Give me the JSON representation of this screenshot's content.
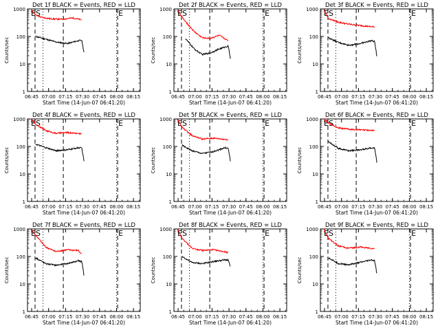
{
  "figure": {
    "colors": {
      "events": "#000000",
      "lld": "#ff0000"
    },
    "x_tick_labels": [
      "06:45",
      "07:00",
      "07:15",
      "07:30",
      "07:45",
      "08:00",
      "08:15"
    ],
    "y_tick_labels": [
      "1",
      "10",
      "100",
      "1000"
    ]
  },
  "chart_data": [
    {
      "type": "line",
      "title": "Det 1f BLACK = Events, RED = LLD",
      "xlabel": "Start Time (14-Jun-07 06:41:20)",
      "ylabel": "Counts/sec",
      "xlim": [
        "06:41:20",
        "08:21:00"
      ],
      "ylim": [
        1,
        1000
      ],
      "yscale": "log",
      "markers": {
        "dashed": [
          "06:48",
          "07:13",
          "08:01"
        ],
        "dotted": [
          "06:55",
          "08:00"
        ],
        "labels": [
          "E",
          "S",
          "E"
        ]
      },
      "series": [
        {
          "name": "Events",
          "values": [
            [
              7.2,
              100
            ],
            [
              16,
              80
            ],
            [
              25,
              63
            ],
            [
              35,
              55
            ],
            [
              45,
              70
            ],
            [
              48,
              72
            ],
            [
              50,
              25
            ]
          ]
        },
        {
          "name": "LLD",
          "values": [
            [
              3,
              1000
            ],
            [
              7.2,
              600
            ],
            [
              12,
              500
            ],
            [
              20,
              440
            ],
            [
              30,
              420
            ],
            [
              40,
              470
            ],
            [
              48,
              400
            ]
          ]
        }
      ]
    },
    {
      "type": "line",
      "title": "Det 2f BLACK = Events, RED = LLD",
      "xlabel": "Start Time (14-Jun-07 06:41:20)",
      "ylabel": "Counts/sec",
      "xlim": [
        "06:41:20",
        "08:21:00"
      ],
      "ylim": [
        1,
        1000
      ],
      "yscale": "log",
      "markers": {
        "dashed": [
          "06:48",
          "07:13",
          "08:01"
        ],
        "dotted": [
          "06:55",
          "08:00"
        ],
        "labels": [
          "E",
          "S",
          "E"
        ]
      },
      "series": [
        {
          "name": "Events",
          "values": [
            [
              10,
              85
            ],
            [
              18,
              35
            ],
            [
              25,
              22
            ],
            [
              32,
              25
            ],
            [
              40,
              35
            ],
            [
              48,
              45
            ],
            [
              50,
              15
            ]
          ]
        },
        {
          "name": "LLD",
          "values": [
            [
              3,
              900
            ],
            [
              10,
              350
            ],
            [
              18,
              150
            ],
            [
              25,
              90
            ],
            [
              32,
              85
            ],
            [
              40,
              110
            ],
            [
              48,
              70
            ]
          ]
        }
      ]
    },
    {
      "type": "line",
      "title": "Det 3f BLACK = Events, RED = LLD",
      "xlabel": "Start Time (14-Jun-07 06:41:20)",
      "ylabel": "Counts/sec",
      "xlim": [
        "06:41:20",
        "08:21:00"
      ],
      "ylim": [
        1,
        1000
      ],
      "yscale": "log",
      "markers": {
        "dashed": [
          "06:48",
          "07:13",
          "08:01"
        ],
        "dotted": [
          "06:55",
          "08:00"
        ],
        "labels": [
          "E",
          "S",
          "E"
        ]
      },
      "series": [
        {
          "name": "Events",
          "values": [
            [
              7.2,
              90
            ],
            [
              16,
              60
            ],
            [
              25,
              48
            ],
            [
              35,
              55
            ],
            [
              45,
              70
            ],
            [
              48,
              65
            ],
            [
              50,
              18
            ]
          ]
        },
        {
          "name": "LLD",
          "values": [
            [
              3,
              950
            ],
            [
              7.2,
              450
            ],
            [
              16,
              330
            ],
            [
              25,
              280
            ],
            [
              35,
              250
            ],
            [
              48,
              220
            ]
          ]
        }
      ]
    },
    {
      "type": "line",
      "title": "Det 4f BLACK = Events, RED = LLD",
      "xlabel": "Start Time (14-Jun-07 06:41:20)",
      "ylabel": "Counts/sec",
      "xlim": [
        "06:41:20",
        "08:21:00"
      ],
      "ylim": [
        1,
        1000
      ],
      "yscale": "log",
      "markers": {
        "dashed": [
          "06:48",
          "07:13",
          "08:01"
        ],
        "dotted": [
          "06:55",
          "08:00"
        ],
        "labels": [
          "E",
          "S",
          "E"
        ]
      },
      "series": [
        {
          "name": "Events",
          "values": [
            [
              7.2,
              120
            ],
            [
              16,
              90
            ],
            [
              25,
              70
            ],
            [
              35,
              75
            ],
            [
              45,
              90
            ],
            [
              48,
              88
            ],
            [
              50,
              28
            ]
          ]
        },
        {
          "name": "LLD",
          "values": [
            [
              3,
              1000
            ],
            [
              7.2,
              650
            ],
            [
              16,
              380
            ],
            [
              25,
              300
            ],
            [
              35,
              320
            ],
            [
              48,
              290
            ]
          ]
        }
      ]
    },
    {
      "type": "line",
      "title": "Det 5f BLACK = Events, RED = LLD",
      "xlabel": "Start Time (14-Jun-07 06:41:20)",
      "ylabel": "Counts/sec",
      "xlim": [
        "06:41:20",
        "08:21:00"
      ],
      "ylim": [
        1,
        1000
      ],
      "yscale": "log",
      "markers": {
        "dashed": [
          "06:48",
          "07:13",
          "08:01"
        ],
        "dotted": [
          "06:55",
          "08:00"
        ],
        "labels": [
          "E",
          "S",
          "E"
        ]
      },
      "series": [
        {
          "name": "Events",
          "values": [
            [
              7.2,
              110
            ],
            [
              16,
              70
            ],
            [
              25,
              55
            ],
            [
              35,
              65
            ],
            [
              45,
              90
            ],
            [
              48,
              85
            ],
            [
              50,
              28
            ]
          ]
        },
        {
          "name": "LLD",
          "values": [
            [
              3,
              1000
            ],
            [
              7.2,
              500
            ],
            [
              16,
              250
            ],
            [
              25,
              185
            ],
            [
              35,
              200
            ],
            [
              48,
              175
            ]
          ]
        }
      ]
    },
    {
      "type": "line",
      "title": "Det 6f BLACK = Events, RED = LLD",
      "xlabel": "Start Time (14-Jun-07 06:41:20)",
      "ylabel": "Counts/sec",
      "xlim": [
        "06:41:20",
        "08:21:00"
      ],
      "ylim": [
        1,
        1000
      ],
      "yscale": "log",
      "markers": {
        "dashed": [
          "06:48",
          "07:13",
          "08:01"
        ],
        "dotted": [
          "06:55",
          "08:00"
        ],
        "labels": [
          "E",
          "S",
          "E"
        ]
      },
      "series": [
        {
          "name": "Events",
          "values": [
            [
              7.2,
              150
            ],
            [
              16,
              85
            ],
            [
              25,
              70
            ],
            [
              35,
              75
            ],
            [
              45,
              90
            ],
            [
              48,
              88
            ],
            [
              50,
              25
            ]
          ]
        },
        {
          "name": "LLD",
          "values": [
            [
              3,
              1000
            ],
            [
              7.2,
              700
            ],
            [
              16,
              480
            ],
            [
              25,
              420
            ],
            [
              35,
              400
            ],
            [
              48,
              380
            ]
          ]
        }
      ]
    },
    {
      "type": "line",
      "title": "Det 7f BLACK = Events, RED = LLD",
      "xlabel": "Start Time (14-Jun-07 06:41:20)",
      "ylabel": "Counts/sec",
      "xlim": [
        "06:41:20",
        "08:21:00"
      ],
      "ylim": [
        1,
        1000
      ],
      "yscale": "log",
      "markers": {
        "dashed": [
          "06:48",
          "07:13",
          "08:01"
        ],
        "dotted": [
          "06:55",
          "08:00"
        ],
        "labels": [
          "E",
          "S",
          "E"
        ]
      },
      "series": [
        {
          "name": "Events",
          "values": [
            [
              7.2,
              90
            ],
            [
              16,
              55
            ],
            [
              25,
              48
            ],
            [
              35,
              55
            ],
            [
              45,
              70
            ],
            [
              48,
              65
            ],
            [
              50,
              20
            ]
          ]
        },
        {
          "name": "LLD",
          "values": [
            [
              3,
              1000
            ],
            [
              7.2,
              600
            ],
            [
              16,
              220
            ],
            [
              25,
              150
            ],
            [
              35,
              175
            ],
            [
              45,
              165
            ],
            [
              48,
              115
            ]
          ]
        }
      ]
    },
    {
      "type": "line",
      "title": "Det 8f BLACK = Events, RED = LLD",
      "xlabel": "Start Time (14-Jun-07 06:41:20)",
      "ylabel": "Counts/sec",
      "xlim": [
        "06:41:20",
        "08:21:00"
      ],
      "ylim": [
        1,
        1000
      ],
      "yscale": "log",
      "markers": {
        "dashed": [
          "06:48",
          "07:13",
          "08:01"
        ],
        "dotted": [
          "06:55",
          "08:00"
        ],
        "labels": [
          "E",
          "S",
          "E"
        ]
      },
      "series": [
        {
          "name": "Events",
          "values": [
            [
              7.2,
              100
            ],
            [
              16,
              60
            ],
            [
              25,
              55
            ],
            [
              35,
              65
            ],
            [
              45,
              75
            ],
            [
              48,
              75
            ],
            [
              50,
              40
            ]
          ]
        },
        {
          "name": "LLD",
          "values": [
            [
              3,
              1000
            ],
            [
              7.2,
              450
            ],
            [
              16,
              200
            ],
            [
              25,
              165
            ],
            [
              35,
              175
            ],
            [
              48,
              140
            ]
          ]
        }
      ]
    },
    {
      "type": "line",
      "title": "Det 9f BLACK = Events, RED = LLD",
      "xlabel": "Start Time (14-Jun-07 06:41:20)",
      "ylabel": "Counts/sec",
      "xlim": [
        "06:41:20",
        "08:21:00"
      ],
      "ylim": [
        1,
        1000
      ],
      "yscale": "log",
      "markers": {
        "dashed": [
          "06:48",
          "07:13",
          "08:01"
        ],
        "dotted": [
          "06:55",
          "08:00"
        ],
        "labels": [
          "E",
          "S",
          "E"
        ]
      },
      "series": [
        {
          "name": "Events",
          "values": [
            [
              7.2,
              90
            ],
            [
              16,
              55
            ],
            [
              25,
              50
            ],
            [
              35,
              60
            ],
            [
              45,
              75
            ],
            [
              48,
              70
            ],
            [
              50,
              22
            ]
          ]
        },
        {
          "name": "LLD",
          "values": [
            [
              3,
              1000
            ],
            [
              7.2,
              450
            ],
            [
              16,
              240
            ],
            [
              25,
              200
            ],
            [
              35,
              220
            ],
            [
              48,
              190
            ]
          ]
        }
      ]
    }
  ]
}
